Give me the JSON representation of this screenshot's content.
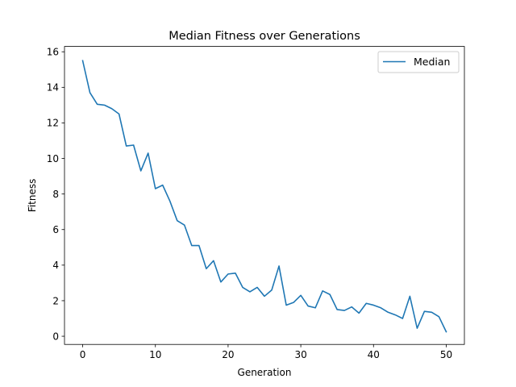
{
  "chart_data": {
    "type": "line",
    "title": "Median Fitness over Generations",
    "xlabel": "Generation",
    "ylabel": "Fitness",
    "xlim": [
      -2.5,
      52.5
    ],
    "ylim": [
      -0.46,
      16.3
    ],
    "xticks": [
      0,
      10,
      20,
      30,
      40,
      50
    ],
    "yticks": [
      0,
      2,
      4,
      6,
      8,
      10,
      12,
      14,
      16
    ],
    "grid": false,
    "legend_position": "top-right",
    "series": [
      {
        "name": "Median",
        "color": "#1f77b4",
        "x": [
          0,
          1,
          2,
          3,
          4,
          5,
          6,
          7,
          8,
          9,
          10,
          11,
          12,
          13,
          14,
          15,
          16,
          17,
          18,
          19,
          20,
          21,
          22,
          23,
          24,
          25,
          26,
          27,
          28,
          29,
          30,
          31,
          32,
          33,
          34,
          35,
          36,
          37,
          38,
          39,
          40,
          41,
          42,
          43,
          44,
          45,
          46,
          47,
          48,
          49,
          50
        ],
        "y": [
          15.5,
          13.7,
          13.05,
          13.0,
          12.8,
          12.5,
          10.7,
          10.75,
          9.3,
          10.3,
          8.3,
          8.5,
          7.6,
          6.5,
          6.25,
          5.1,
          5.1,
          3.8,
          4.25,
          3.05,
          3.5,
          3.55,
          2.75,
          2.5,
          2.75,
          2.25,
          2.6,
          3.95,
          1.75,
          1.9,
          2.3,
          1.7,
          1.6,
          2.55,
          2.35,
          1.5,
          1.45,
          1.65,
          1.3,
          1.85,
          1.75,
          1.6,
          1.35,
          1.2,
          1.0,
          2.25,
          0.45,
          1.4,
          1.35,
          1.1,
          0.25
        ]
      }
    ]
  }
}
